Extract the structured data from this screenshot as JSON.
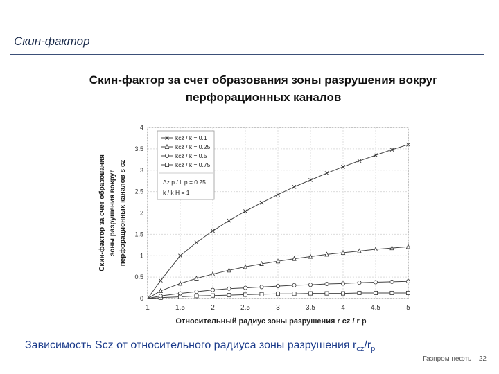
{
  "header": {
    "title": "Скин-фактор"
  },
  "caption": {
    "text": "Зависимость Scz от относительного радиуса зоны разрушения r",
    "sub1": "cz",
    "slash": "/r",
    "sub2": "p"
  },
  "footer": {
    "brand": "Газпром нефть",
    "page": "22"
  },
  "chart_data": {
    "type": "line",
    "title": "Скин-фактор за счет образования зоны разрушения вокруг перфорационных каналов",
    "xlabel": "Относительный радиус зоны разрушения r cz / r p",
    "ylabel": [
      "Скин-фактор за счет образования",
      "зоны разрушения вокруг",
      "перфорационных каналов s cz"
    ],
    "xlim": [
      1,
      5
    ],
    "ylim": [
      0,
      4
    ],
    "xticks": [
      "1",
      "1.5",
      "2",
      "2.5",
      "3",
      "3.5",
      "4",
      "4.5",
      "5"
    ],
    "yticks": [
      "0",
      "0.5",
      "1",
      "1.5",
      "2",
      "2.5",
      "3",
      "3.5",
      "4"
    ],
    "grid": true,
    "legend_position": "top-left",
    "x": [
      1.0,
      1.2,
      1.5,
      1.75,
      2.0,
      2.25,
      2.5,
      2.75,
      3.0,
      3.25,
      3.5,
      3.75,
      4.0,
      4.25,
      4.5,
      4.75,
      5.0
    ],
    "series": [
      {
        "name": "kcz / k = 0.75",
        "marker": "square",
        "values": [
          0.0,
          0.02,
          0.04,
          0.06,
          0.07,
          0.08,
          0.09,
          0.1,
          0.11,
          0.11,
          0.12,
          0.12,
          0.12,
          0.13,
          0.13,
          0.13,
          0.13
        ]
      },
      {
        "name": "kcz / k = 0.5",
        "marker": "circle",
        "values": [
          0.0,
          0.06,
          0.12,
          0.16,
          0.2,
          0.23,
          0.25,
          0.27,
          0.29,
          0.31,
          0.32,
          0.34,
          0.35,
          0.37,
          0.38,
          0.39,
          0.4
        ]
      },
      {
        "name": "kcz / k = 0.25",
        "marker": "triangle",
        "values": [
          0.0,
          0.18,
          0.35,
          0.47,
          0.57,
          0.66,
          0.74,
          0.81,
          0.87,
          0.93,
          0.98,
          1.03,
          1.07,
          1.11,
          1.15,
          1.18,
          1.21
        ]
      },
      {
        "name": "kcz / k = 0.1",
        "marker": "x",
        "values": [
          0.0,
          0.42,
          1.0,
          1.31,
          1.58,
          1.82,
          2.04,
          2.24,
          2.43,
          2.61,
          2.77,
          2.93,
          3.08,
          3.22,
          3.35,
          3.48,
          3.6
        ]
      }
    ],
    "annotation": {
      "line1": "Δz p / L p = 0.25",
      "line2": "k / k H = 1"
    }
  }
}
